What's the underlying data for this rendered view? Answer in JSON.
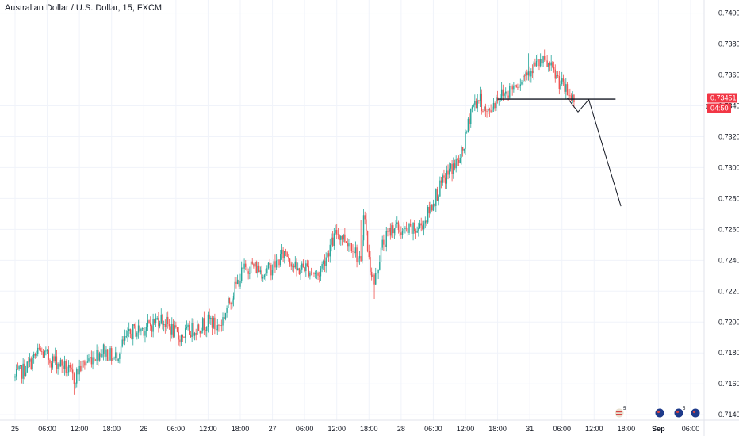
{
  "header": {
    "title": "Australian Dollar / U.S. Dollar, 15, FXCM"
  },
  "chart_data": {
    "type": "candlestick",
    "title": "Australian Dollar / U.S. Dollar, 15, FXCM",
    "ylim": [
      0.71365,
      0.74085
    ],
    "y_ticks": [
      "0.74000",
      "0.73800",
      "0.73600",
      "0.73400",
      "0.73200",
      "0.73000",
      "0.72800",
      "0.72600",
      "0.72400",
      "0.72200",
      "0.72000",
      "0.71800",
      "0.71600",
      "0.71400"
    ],
    "y_tick_values": [
      0.74,
      0.738,
      0.736,
      0.734,
      0.732,
      0.73,
      0.728,
      0.726,
      0.724,
      0.722,
      0.72,
      0.718,
      0.716,
      0.714
    ],
    "x_ticks": [
      "25",
      "06:00",
      "12:00",
      "18:00",
      "26",
      "06:00",
      "12:00",
      "18:00",
      "27",
      "06:00",
      "12:00",
      "18:00",
      "28",
      "06:00",
      "12:00",
      "18:00",
      "31",
      "06:00",
      "12:00",
      "18:00",
      "Sep",
      "06:00"
    ],
    "x_tick_index": [
      0,
      24,
      48,
      72,
      96,
      120,
      144,
      168,
      192,
      216,
      240,
      264,
      288,
      312,
      336,
      360,
      384,
      408,
      432,
      456,
      480,
      504
    ],
    "price_series": [
      [
        0,
        0.7164
      ],
      [
        10,
        0.7172
      ],
      [
        18,
        0.7181
      ],
      [
        26,
        0.7176
      ],
      [
        36,
        0.7172
      ],
      [
        44,
        0.7163
      ],
      [
        48,
        0.717
      ],
      [
        58,
        0.7178
      ],
      [
        66,
        0.7182
      ],
      [
        74,
        0.7176
      ],
      [
        82,
        0.7188
      ],
      [
        88,
        0.7194
      ],
      [
        100,
        0.7197
      ],
      [
        108,
        0.7203
      ],
      [
        116,
        0.7196
      ],
      [
        122,
        0.719
      ],
      [
        134,
        0.7196
      ],
      [
        146,
        0.7201
      ],
      [
        150,
        0.7196
      ],
      [
        154,
        0.72
      ],
      [
        162,
        0.7218
      ],
      [
        170,
        0.7233
      ],
      [
        176,
        0.7237
      ],
      [
        186,
        0.7232
      ],
      [
        194,
        0.7237
      ],
      [
        202,
        0.7246
      ],
      [
        210,
        0.7233
      ],
      [
        216,
        0.7236
      ],
      [
        226,
        0.723
      ],
      [
        232,
        0.7243
      ],
      [
        240,
        0.7258
      ],
      [
        252,
        0.725
      ],
      [
        258,
        0.7236
      ],
      [
        260,
        0.7274
      ],
      [
        264,
        0.724
      ],
      [
        268,
        0.7225
      ],
      [
        274,
        0.725
      ],
      [
        282,
        0.7262
      ],
      [
        290,
        0.7258
      ],
      [
        300,
        0.726
      ],
      [
        306,
        0.7266
      ],
      [
        314,
        0.7282
      ],
      [
        324,
        0.7298
      ],
      [
        332,
        0.7305
      ],
      [
        336,
        0.7318
      ],
      [
        340,
        0.7338
      ],
      [
        346,
        0.7345
      ],
      [
        352,
        0.7334
      ],
      [
        360,
        0.7346
      ],
      [
        368,
        0.735
      ],
      [
        378,
        0.7358
      ],
      [
        384,
        0.7364
      ],
      [
        392,
        0.7368
      ],
      [
        398,
        0.7366
      ],
      [
        406,
        0.7356
      ],
      [
        412,
        0.7348
      ],
      [
        416,
        0.7345
      ]
    ],
    "candle_count": 418,
    "projection": [
      [
        412,
        0.73451
      ],
      [
        420,
        0.7336
      ],
      [
        428,
        0.7344
      ],
      [
        452,
        0.7275
      ]
    ],
    "support_line": {
      "value": 0.73451,
      "from_index": 360,
      "to_index": 448
    },
    "current_price": {
      "label": "0.73451",
      "value": 0.73451,
      "countdown": "04:50"
    },
    "annotations": [
      "0"
    ],
    "event_badges": [
      "5",
      "5"
    ],
    "colors": {
      "up": "#26a69a",
      "down": "#ef5350",
      "price_line": "#f23645",
      "grid": "#f0f3fa",
      "line": "#131722"
    }
  }
}
